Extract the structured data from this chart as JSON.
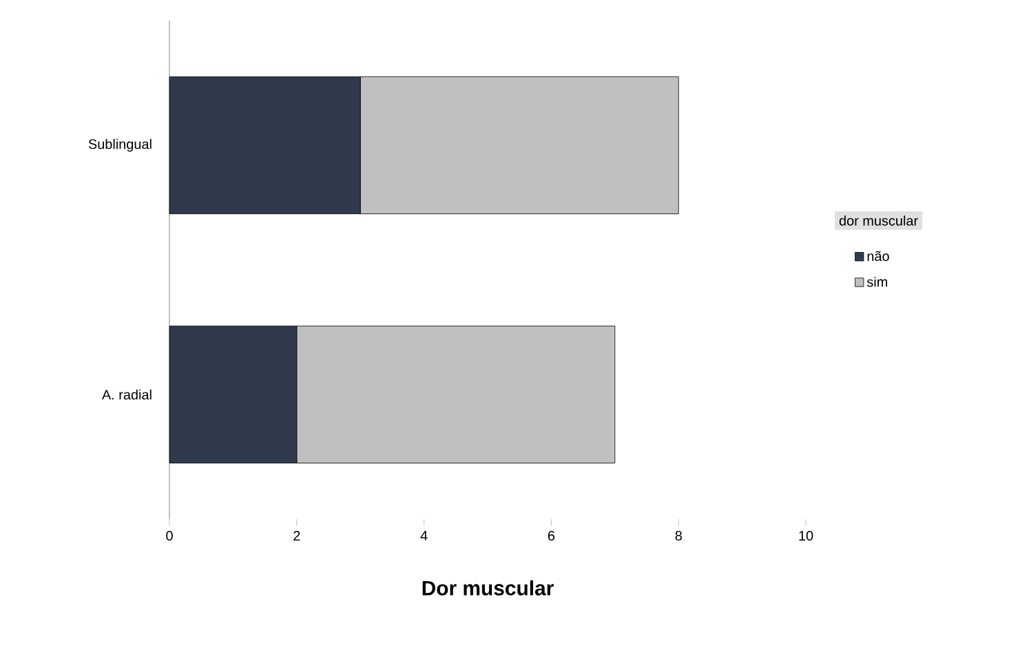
{
  "chart_data": {
    "type": "bar",
    "orientation": "horizontal",
    "stacked": true,
    "xlabel": "Dor muscular",
    "legend_title": "dor muscular",
    "categories": [
      "Sublingual",
      "A. radial"
    ],
    "series": [
      {
        "name": "não",
        "color": "#303a4c",
        "values": [
          3,
          2
        ]
      },
      {
        "name": "sim",
        "color": "#c0c0c0",
        "values": [
          5,
          5
        ]
      }
    ],
    "xlim": [
      0,
      10
    ],
    "xticks": [
      0,
      2,
      4,
      6,
      8,
      10
    ],
    "grid": false,
    "legend": "right"
  }
}
